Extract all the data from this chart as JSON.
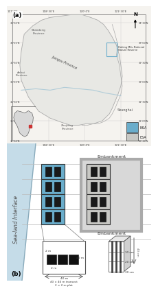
{
  "panel_a_label": "(a)",
  "panel_b_label": "(b)",
  "map_bg": "#f5f3ef",
  "province_fill": "#e8e8e4",
  "province_edge": "#aaaaaa",
  "sea_color": "#ffffff",
  "nsa_color": "#6aadcb",
  "esa_color": "#c8c8c4",
  "nsa_label": "NSA",
  "esa_label": "ESA",
  "embankment_label": "Embankment",
  "sea_land_label": "Sea-land Interface",
  "transect_text1": "40 × 40 m transect",
  "transect_text2": "2 × 2 m plot",
  "depth_labels": [
    "10 cm",
    "20 cm",
    "30 cm"
  ],
  "depth_arrow_label": "40 cm",
  "background_color": "#ffffff",
  "grid_color": "#cccccc",
  "lat_labels": [
    "34°30'N",
    "33°00'N",
    "32°30'N",
    "32°00'N",
    "31°30'N",
    "31°00'N",
    "30°30'N"
  ],
  "lon_labels": [
    "117°0'E",
    "118°30'E",
    "120°0'E",
    "121°30'E"
  ],
  "shandong": "Shandong\nProvince",
  "anhui": "Anhui\nProvince",
  "jiangsu": "Jiangsu Province",
  "zhejiang": "Zhejiang\nProvince",
  "shanghai": "Shanghai",
  "dafeng": "Dafeng Milu National\nNature Reserve",
  "sea_land_band_color": "#c5dce8",
  "embankment_box_color": "#aaaaaa",
  "inner_sq_color": "#1a1a1a",
  "nsa_edge": "#333333",
  "esa_edge": "#333333"
}
